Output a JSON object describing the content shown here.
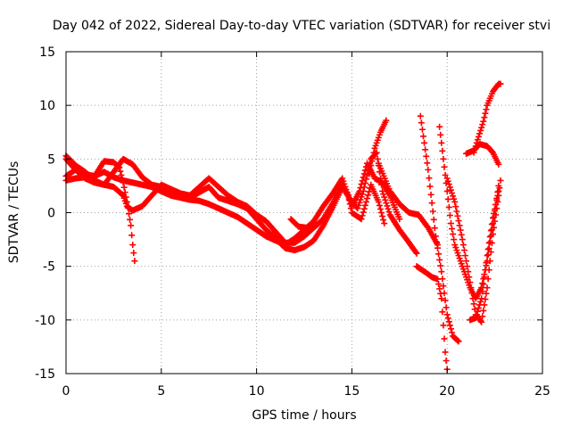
{
  "chart_data": {
    "type": "scatter",
    "title": "Day 042 of 2022, Sidereal Day-to-day VTEC variation (SDTVAR) for receiver stvi",
    "xlabel": "GPS time / hours",
    "ylabel": "SDTVAR / TECUs",
    "xlim": [
      0,
      25
    ],
    "ylim": [
      -15,
      15
    ],
    "xticks": [
      0,
      5,
      10,
      15,
      20,
      25
    ],
    "yticks": [
      -15,
      -10,
      -5,
      0,
      5,
      10,
      15
    ],
    "grid": true,
    "marker": "plus",
    "color": "#ff0000",
    "series": [
      {
        "points": [
          [
            0,
            5.3
          ],
          [
            0.5,
            4.4
          ],
          [
            1,
            3.8
          ],
          [
            1.5,
            3.0
          ],
          [
            2,
            2.6
          ],
          [
            2.5,
            3.8
          ],
          [
            3,
            5.0
          ],
          [
            3.5,
            4.5
          ],
          [
            4,
            3.3
          ],
          [
            4.5,
            2.6
          ],
          [
            5,
            2.4
          ],
          [
            5.5,
            2.0
          ],
          [
            6,
            1.6
          ],
          [
            6.5,
            1.4
          ],
          [
            7,
            1.9
          ],
          [
            7.5,
            2.4
          ],
          [
            8,
            1.4
          ],
          [
            8.5,
            1.1
          ],
          [
            9,
            0.8
          ],
          [
            9.5,
            0.4
          ],
          [
            10,
            -0.6
          ],
          [
            10.5,
            -1.6
          ],
          [
            11,
            -2.4
          ],
          [
            11.5,
            -3.3
          ],
          [
            12,
            -3.5
          ],
          [
            12.5,
            -3.2
          ],
          [
            13,
            -2.6
          ],
          [
            13.5,
            -1.2
          ],
          [
            14,
            0.5
          ],
          [
            14.5,
            2.4
          ],
          [
            15,
            1.0
          ],
          [
            15.3,
            0.4
          ],
          [
            15.6,
            2.0
          ],
          [
            16,
            5.0
          ],
          [
            16.3,
            5.6
          ],
          [
            16.6,
            2.0
          ],
          [
            17,
            -0.2
          ],
          [
            17.5,
            -1.6
          ],
          [
            18,
            -2.8
          ],
          [
            18.4,
            -3.8
          ]
        ]
      },
      {
        "points": [
          [
            0,
            5.0
          ],
          [
            0.5,
            4.0
          ],
          [
            1,
            3.6
          ],
          [
            1.5,
            3.4
          ],
          [
            2,
            4.8
          ],
          [
            2.5,
            4.7
          ],
          [
            2.8,
            4.2
          ],
          [
            3,
            2.8
          ],
          [
            3.2,
            1.0
          ],
          [
            3.4,
            -1.2
          ],
          [
            3.5,
            -3.0
          ],
          [
            3.6,
            -4.5
          ]
        ]
      },
      {
        "points": [
          [
            0,
            3.4
          ],
          [
            0.5,
            4.0
          ],
          [
            1,
            3.2
          ],
          [
            1.5,
            2.8
          ],
          [
            2,
            2.6
          ],
          [
            2.5,
            2.4
          ],
          [
            3,
            1.6
          ],
          [
            3.2,
            0.6
          ],
          [
            3.5,
            0.2
          ],
          [
            4,
            0.6
          ],
          [
            4.5,
            1.6
          ],
          [
            5,
            2.6
          ],
          [
            5.5,
            2.2
          ],
          [
            6,
            1.8
          ],
          [
            6.5,
            1.6
          ],
          [
            7,
            2.4
          ],
          [
            7.5,
            3.2
          ],
          [
            8,
            2.4
          ],
          [
            8.5,
            1.6
          ],
          [
            9,
            1.0
          ],
          [
            9.5,
            0.6
          ],
          [
            10,
            -0.2
          ],
          [
            10.5,
            -0.8
          ],
          [
            11,
            -1.8
          ],
          [
            11.5,
            -2.8
          ],
          [
            12,
            -2.8
          ],
          [
            12.5,
            -2.2
          ],
          [
            13,
            -1.4
          ],
          [
            13.5,
            -0.6
          ],
          [
            14,
            0.9
          ],
          [
            14.5,
            2.6
          ],
          [
            14.8,
            1.6
          ],
          [
            15,
            0.0
          ],
          [
            15.5,
            -0.6
          ],
          [
            16,
            2.6
          ],
          [
            16.4,
            1.0
          ],
          [
            16.7,
            -1.0
          ]
        ]
      },
      {
        "points": [
          [
            0,
            3.0
          ],
          [
            0.5,
            3.2
          ],
          [
            1,
            3.3
          ],
          [
            1.5,
            3.4
          ],
          [
            2,
            3.8
          ],
          [
            2.5,
            3.3
          ],
          [
            3,
            3.0
          ],
          [
            3.5,
            2.8
          ],
          [
            4,
            2.6
          ],
          [
            4.5,
            2.4
          ],
          [
            5,
            2.0
          ],
          [
            5.5,
            1.6
          ],
          [
            6,
            1.4
          ],
          [
            6.5,
            1.2
          ],
          [
            7,
            1.1
          ],
          [
            7.5,
            0.8
          ],
          [
            8,
            0.4
          ],
          [
            8.5,
            0.0
          ],
          [
            9,
            -0.4
          ],
          [
            9.5,
            -1.0
          ],
          [
            10,
            -1.6
          ],
          [
            10.5,
            -2.2
          ],
          [
            11,
            -2.6
          ],
          [
            11.5,
            -3.0
          ],
          [
            12,
            -2.4
          ],
          [
            12.5,
            -1.6
          ],
          [
            13,
            -0.8
          ],
          [
            13.5,
            0.6
          ],
          [
            14,
            1.8
          ],
          [
            14.5,
            3.2
          ],
          [
            15,
            0.6
          ],
          [
            15.4,
            2.0
          ],
          [
            15.8,
            4.6
          ],
          [
            16.2,
            3.2
          ],
          [
            16.6,
            2.8
          ],
          [
            17,
            1.6
          ],
          [
            17.5,
            -0.6
          ]
        ]
      },
      {
        "points": [
          [
            11.8,
            -0.6
          ],
          [
            12.2,
            -1.3
          ],
          [
            12.6,
            -1.4
          ],
          [
            13,
            -1.2
          ]
        ]
      },
      {
        "points": [
          [
            15.9,
            3.6
          ],
          [
            16.2,
            6.0
          ],
          [
            16.5,
            7.5
          ],
          [
            16.8,
            8.6
          ]
        ]
      },
      {
        "points": [
          [
            16.4,
            4.6
          ],
          [
            17,
            2.0
          ],
          [
            17.5,
            0.8
          ],
          [
            18,
            0.0
          ],
          [
            18.5,
            -0.2
          ],
          [
            19,
            -1.4
          ],
          [
            19.5,
            -3.0
          ]
        ]
      },
      {
        "points": [
          [
            18.6,
            9.0
          ],
          [
            19,
            4.0
          ],
          [
            19.4,
            -2.2
          ],
          [
            19.7,
            -5.5
          ],
          [
            20,
            -9.5
          ],
          [
            20.3,
            -11.5
          ],
          [
            20.6,
            -12.0
          ]
        ]
      },
      {
        "points": [
          [
            18.4,
            -5.0
          ],
          [
            18.9,
            -5.6
          ],
          [
            19.2,
            -6.0
          ],
          [
            19.5,
            -6.2
          ],
          [
            19.7,
            -8.0
          ],
          [
            19.9,
            -13.0
          ],
          [
            20,
            -14.6
          ]
        ]
      },
      {
        "points": [
          [
            19.6,
            8.0
          ],
          [
            19.8,
            5.0
          ],
          [
            20,
            2.0
          ],
          [
            20.2,
            -1.0
          ],
          [
            20.4,
            -3.0
          ],
          [
            20.8,
            -5.0
          ],
          [
            21.2,
            -7.0
          ],
          [
            21.5,
            -8.0
          ],
          [
            21.8,
            -7.0
          ],
          [
            22.1,
            -4.5
          ],
          [
            22.4,
            -1.0
          ],
          [
            22.7,
            2.5
          ]
        ]
      },
      {
        "points": [
          [
            21,
            5.5
          ],
          [
            21.4,
            5.8
          ],
          [
            21.7,
            6.4
          ],
          [
            22.1,
            6.2
          ],
          [
            22.4,
            5.6
          ],
          [
            22.7,
            4.5
          ]
        ]
      },
      {
        "points": [
          [
            20,
            3.2
          ],
          [
            20.4,
            1.0
          ],
          [
            20.8,
            -2.5
          ],
          [
            21.2,
            -6.5
          ],
          [
            21.5,
            -9.5
          ],
          [
            21.8,
            -10.2
          ],
          [
            22.1,
            -7.0
          ],
          [
            22.4,
            -2.0
          ],
          [
            22.7,
            1.6
          ],
          [
            22.8,
            3.0
          ]
        ]
      },
      {
        "points": [
          [
            21.2,
            -10.0
          ],
          [
            21.5,
            -9.8
          ],
          [
            21.8,
            -8.0
          ],
          [
            22.1,
            -4.0
          ],
          [
            22.4,
            -0.5
          ],
          [
            22.7,
            2.0
          ]
        ]
      },
      {
        "points": [
          [
            21.4,
            5.6
          ],
          [
            21.6,
            6.8
          ],
          [
            21.9,
            8.5
          ],
          [
            22.1,
            10.0
          ],
          [
            22.4,
            11.3
          ],
          [
            22.7,
            12.0
          ],
          [
            22.8,
            12.0
          ]
        ]
      }
    ]
  }
}
